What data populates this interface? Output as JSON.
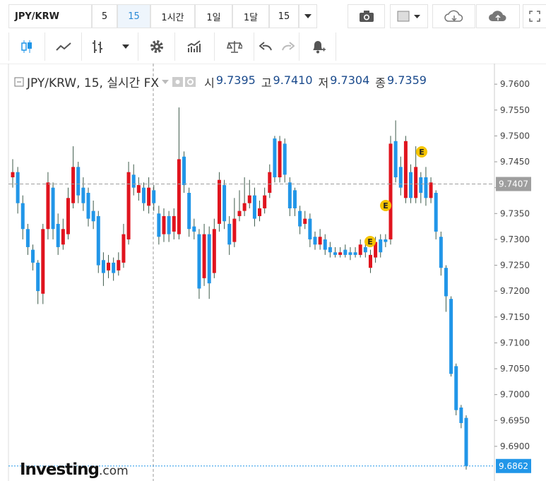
{
  "toolbar": {
    "symbol": "JPY/KRW",
    "intervals": [
      "5",
      "15",
      "1시간",
      "1일",
      "1달",
      "15"
    ]
  },
  "chart_data": {
    "type": "candlestick",
    "title": "JPY/KRW, 15, 실시간 FX",
    "ohlc_labels": [
      {
        "label": "시",
        "value": {
          "value": 9.7395,
          "label": "9.7395"
        }
      },
      {
        "label": "고",
        "value": {
          "value": 9.741,
          "label": "9.7410"
        }
      },
      {
        "label": "저",
        "value": {
          "value": 9.7304,
          "label": "9.7304"
        }
      },
      {
        "label": "종",
        "value": {
          "value": 9.7359,
          "label": "9.7359"
        }
      }
    ],
    "up_color": "#e0141e",
    "down_color": "#2196e8",
    "wick_color": "#3d5a4a",
    "open": [
      9.742,
      9.743,
      9.737,
      9.732,
      9.728,
      9.7255,
      9.7195,
      9.732,
      9.74,
      9.733,
      9.729,
      9.731,
      9.737,
      9.744,
      9.74,
      9.739,
      9.7355,
      9.7345,
      9.726,
      9.724,
      9.7255,
      9.724,
      9.7255,
      9.73,
      9.7425,
      9.739,
      9.74,
      9.7365,
      9.7395,
      9.735,
      9.731,
      9.7345,
      9.7315,
      9.731,
      9.746,
      9.739,
      9.7325,
      9.731,
      9.7225,
      9.731,
      9.7235,
      9.733,
      9.7405,
      9.733,
      9.7295,
      9.7345,
      9.7355,
      9.737,
      9.7385,
      9.7345,
      9.736,
      9.739,
      9.7495,
      9.742,
      9.7485,
      9.741,
      9.7395,
      9.7355,
      9.733,
      9.734,
      9.7305,
      9.729,
      9.73,
      9.7285,
      9.7275,
      9.727,
      9.728,
      9.7275,
      9.7275,
      9.727,
      9.7285,
      9.7245,
      9.7265,
      9.73,
      9.73,
      9.73,
      9.749,
      9.744,
      9.738,
      9.743,
      9.738,
      9.742,
      9.742,
      9.738,
      9.739,
      9.7305,
      9.7245,
      9.7185,
      9.7055,
      9.6975,
      9.6955
    ],
    "high": [
      9.7455,
      9.744,
      9.7385,
      9.733,
      9.729,
      9.726,
      9.733,
      9.743,
      9.741,
      9.735,
      9.734,
      9.74,
      9.748,
      9.745,
      9.742,
      9.74,
      9.7375,
      9.7355,
      9.7275,
      9.727,
      9.7265,
      9.7275,
      9.733,
      9.745,
      9.7445,
      9.742,
      9.741,
      9.742,
      9.7405,
      9.7365,
      9.736,
      9.7355,
      9.736,
      9.7555,
      9.747,
      9.74,
      9.734,
      9.732,
      9.733,
      9.7325,
      9.734,
      9.743,
      9.7415,
      9.7345,
      9.738,
      9.7395,
      9.742,
      9.7415,
      9.74,
      9.7375,
      9.74,
      9.7445,
      9.75,
      9.75,
      9.7495,
      9.742,
      9.74,
      9.7365,
      9.7355,
      9.735,
      9.7315,
      9.732,
      9.731,
      9.7295,
      9.7285,
      9.7285,
      9.729,
      9.7285,
      9.7285,
      9.73,
      9.7295,
      9.728,
      9.7305,
      9.731,
      9.731,
      9.75,
      9.753,
      9.746,
      9.75,
      9.7445,
      9.748,
      9.743,
      9.744,
      9.742,
      9.7395,
      9.7315,
      9.725,
      9.719,
      9.706,
      9.698,
      9.696
    ],
    "low": [
      9.74,
      9.735,
      9.73,
      9.727,
      9.724,
      9.7175,
      9.7175,
      9.73,
      9.73,
      9.727,
      9.728,
      9.73,
      9.736,
      9.737,
      9.7355,
      9.7325,
      9.732,
      9.7235,
      9.721,
      9.7225,
      9.722,
      9.723,
      9.7245,
      9.729,
      9.7385,
      9.7375,
      9.7355,
      9.735,
      9.7355,
      9.729,
      9.7295,
      9.7295,
      9.73,
      9.73,
      9.739,
      9.7305,
      9.73,
      9.7185,
      9.721,
      9.7185,
      9.7225,
      9.7315,
      9.732,
      9.727,
      9.7285,
      9.7335,
      9.7345,
      9.736,
      9.7325,
      9.7335,
      9.735,
      9.738,
      9.741,
      9.741,
      9.741,
      9.7345,
      9.7345,
      9.731,
      9.732,
      9.7285,
      9.728,
      9.728,
      9.727,
      9.7265,
      9.7265,
      9.7265,
      9.7265,
      9.726,
      9.7265,
      9.7265,
      9.7265,
      9.7235,
      9.7255,
      9.7265,
      9.7285,
      9.729,
      9.741,
      9.7385,
      9.737,
      9.737,
      9.737,
      9.737,
      9.7365,
      9.737,
      9.73,
      9.723,
      9.716,
      9.7035,
      9.696,
      9.6935,
      9.6855
    ],
    "close": [
      9.743,
      9.737,
      9.732,
      9.7285,
      9.7255,
      9.72,
      9.732,
      9.741,
      9.732,
      9.7285,
      9.732,
      9.738,
      9.744,
      9.7385,
      9.737,
      9.734,
      9.7335,
      9.725,
      9.7235,
      9.7255,
      9.7235,
      9.726,
      9.731,
      9.743,
      9.74,
      9.7405,
      9.737,
      9.74,
      9.737,
      9.7305,
      9.7345,
      9.731,
      9.7345,
      9.7455,
      9.7405,
      9.732,
      9.7315,
      9.7205,
      9.731,
      9.7215,
      9.732,
      9.7415,
      9.7335,
      9.729,
      9.734,
      9.7355,
      9.737,
      9.7385,
      9.734,
      9.736,
      9.7385,
      9.743,
      9.742,
      9.749,
      9.7425,
      9.736,
      9.736,
      9.7325,
      9.734,
      9.73,
      9.729,
      9.7305,
      9.728,
      9.7275,
      9.727,
      9.7275,
      9.727,
      9.727,
      9.727,
      9.729,
      9.7275,
      9.727,
      9.7295,
      9.7275,
      9.7295,
      9.7485,
      9.742,
      9.74,
      9.749,
      9.738,
      9.744,
      9.739,
      9.738,
      9.741,
      9.7315,
      9.7245,
      9.719,
      9.704,
      9.697,
      9.6945,
      9.6862
    ],
    "event_marker": "E",
    "price_lines": [
      {
        "value": 9.7407,
        "label": "9.7407",
        "color": "#9e9e9e"
      },
      {
        "value": 9.6862,
        "label": "9.6862",
        "color": "#2196e8"
      }
    ],
    "ylim": [
      9.6833,
      9.7633
    ],
    "yticks": [
      {
        "value": 9.69,
        "label": "9.6900"
      },
      {
        "value": 9.695,
        "label": "9.6950"
      },
      {
        "value": 9.7,
        "label": "9.7000"
      },
      {
        "value": 9.705,
        "label": "9.7050"
      },
      {
        "value": 9.71,
        "label": "9.7100"
      },
      {
        "value": 9.715,
        "label": "9.7150"
      },
      {
        "value": 9.72,
        "label": "9.7200"
      },
      {
        "value": 9.725,
        "label": "9.7250"
      },
      {
        "value": 9.73,
        "label": "9.7300"
      },
      {
        "value": 9.735,
        "label": "9.7350"
      },
      {
        "value": 9.74,
        "label": "9.7400"
      },
      {
        "value": 9.745,
        "label": "9.7450"
      },
      {
        "value": 9.75,
        "label": "9.7500"
      },
      {
        "value": 9.755,
        "label": "9.7550"
      },
      {
        "value": 9.76,
        "label": "9.7600"
      }
    ],
    "grid": false
  },
  "logo": {
    "brand": "Investing",
    "suffix": ".com"
  }
}
